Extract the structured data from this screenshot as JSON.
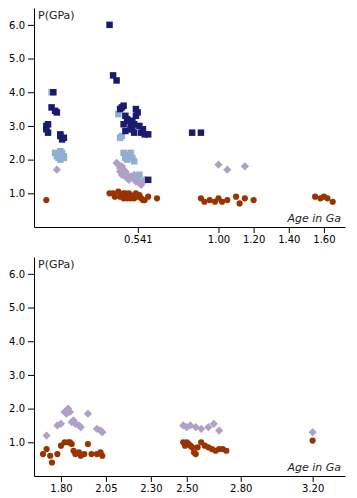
{
  "chart_data": [
    {
      "type": "scatter",
      "ylabel": "P(GPa)",
      "xlabel": "Age in Ga",
      "xlim": [
        -0.05,
        1.72
      ],
      "ylim": [
        0,
        6.5
      ],
      "xticks": [
        0.541,
        {
          "value": 1.0,
          "label": "1.00"
        },
        {
          "value": 1.2,
          "label": "1.20"
        },
        {
          "value": 1.4,
          "label": "1.40"
        },
        {
          "value": 1.6,
          "label": "1.60"
        }
      ],
      "yticks": [
        {
          "value": 1.0,
          "label": "1.0"
        },
        {
          "value": 2.0,
          "label": "2.0"
        },
        {
          "value": 3.0,
          "label": "3.0"
        },
        {
          "value": 4.0,
          "label": "4.0"
        },
        {
          "value": 5.0,
          "label": "5.0"
        },
        {
          "value": 6.0,
          "label": "6.0"
        }
      ],
      "series": [
        {
          "color": "#993300",
          "marker": "circle",
          "x": [
            0.02,
            0.38,
            0.4,
            0.41,
            0.43,
            0.44,
            0.45,
            0.46,
            0.46,
            0.47,
            0.47,
            0.48,
            0.48,
            0.49,
            0.49,
            0.5,
            0.5,
            0.51,
            0.52,
            0.53,
            0.54,
            0.55,
            0.56,
            0.57,
            0.58,
            0.6,
            0.65,
            0.9,
            0.92,
            0.95,
            0.98,
            1.0,
            1.02,
            1.05,
            1.1,
            1.12,
            1.15,
            1.2,
            1.55,
            1.58,
            1.6,
            1.62,
            1.65
          ],
          "values": [
            0.8,
            1.0,
            1.0,
            0.9,
            1.05,
            0.9,
            0.95,
            1.0,
            0.85,
            1.0,
            0.9,
            0.95,
            0.85,
            1.0,
            0.9,
            0.95,
            0.85,
            0.9,
            0.85,
            1.0,
            0.9,
            0.95,
            0.85,
            0.8,
            0.8,
            0.9,
            0.85,
            0.85,
            0.75,
            0.8,
            0.75,
            0.85,
            0.75,
            0.8,
            0.9,
            0.7,
            0.85,
            0.8,
            0.9,
            0.85,
            0.9,
            0.85,
            0.75
          ]
        },
        {
          "color": "#b0a0c8",
          "marker": "diamond",
          "x": [
            0.08,
            0.42,
            0.43,
            0.44,
            0.44,
            0.45,
            0.45,
            0.46,
            0.46,
            0.47,
            0.47,
            0.48,
            0.48,
            0.49,
            0.5,
            0.51,
            0.52,
            0.53,
            0.54,
            0.55,
            0.56,
            0.57,
            0.58,
            1.0,
            1.05,
            1.15
          ],
          "values": [
            1.7,
            1.9,
            1.85,
            1.75,
            1.65,
            1.8,
            1.55,
            1.7,
            1.6,
            1.65,
            1.5,
            1.55,
            1.45,
            1.4,
            1.5,
            1.45,
            1.55,
            1.35,
            1.4,
            1.3,
            1.25,
            1.35,
            1.4,
            1.85,
            1.7,
            1.8
          ]
        },
        {
          "color": "#8fb0d0",
          "marker": "square",
          "x": [
            0.05,
            0.07,
            0.08,
            0.09,
            0.09,
            0.1,
            0.1,
            0.11,
            0.12,
            0.12,
            0.43,
            0.44,
            0.45,
            0.46,
            0.47,
            0.47,
            0.48,
            0.49,
            0.5,
            0.51,
            0.52,
            0.54,
            0.55
          ],
          "values": [
            4.0,
            2.2,
            2.1,
            2.15,
            2.05,
            2.0,
            2.25,
            2.2,
            2.1,
            2.05,
            3.35,
            2.65,
            2.7,
            2.2,
            2.05,
            2.1,
            2.0,
            2.15,
            2.2,
            2.05,
            1.95,
            1.5,
            1.55
          ]
        },
        {
          "color": "#1a1a6e",
          "marker": "square",
          "x": [
            0.02,
            0.02,
            0.03,
            0.03,
            0.05,
            0.06,
            0.07,
            0.08,
            0.1,
            0.1,
            0.11,
            0.12,
            0.38,
            0.4,
            0.42,
            0.44,
            0.45,
            0.46,
            0.46,
            0.47,
            0.47,
            0.48,
            0.49,
            0.5,
            0.5,
            0.51,
            0.51,
            0.52,
            0.52,
            0.53,
            0.53,
            0.54,
            0.55,
            0.56,
            0.57,
            0.58,
            0.6,
            0.85,
            0.9,
            0.6
          ],
          "values": [
            3.0,
            2.9,
            2.8,
            3.05,
            3.55,
            4.0,
            3.45,
            3.4,
            2.7,
            2.75,
            2.6,
            2.65,
            6.0,
            4.5,
            4.35,
            3.5,
            3.55,
            3.6,
            3.05,
            2.85,
            3.3,
            3.2,
            3.15,
            2.9,
            3.0,
            2.9,
            3.15,
            2.8,
            3.05,
            3.3,
            3.5,
            3.4,
            3.0,
            2.8,
            2.9,
            2.75,
            2.75,
            2.8,
            2.8,
            1.4
          ]
        }
      ]
    },
    {
      "type": "scatter",
      "ylabel": "P(GPa)",
      "xlabel": "Age in Ga",
      "xlim": [
        1.65,
        3.38
      ],
      "ylim": [
        0,
        6.5
      ],
      "xticks": [
        {
          "value": 1.8,
          "label": "1.80"
        },
        2.05,
        {
          "value": 2.3,
          "label": "2.30"
        },
        {
          "value": 2.5,
          "label": "2.50"
        },
        {
          "value": 2.8,
          "label": "2.80"
        },
        {
          "value": 3.2,
          "label": "3.20"
        }
      ],
      "yticks": [
        {
          "value": 1.0,
          "label": "1.0"
        },
        {
          "value": 2.0,
          "label": "2.0"
        },
        {
          "value": 3.0,
          "label": "3.0"
        },
        {
          "value": 4.0,
          "label": "4.0"
        },
        {
          "value": 5.0,
          "label": "5.0"
        },
        {
          "value": 6.0,
          "label": "6.0"
        }
      ],
      "series": [
        {
          "color": "#993300",
          "marker": "circle",
          "x": [
            1.7,
            1.72,
            1.74,
            1.75,
            1.78,
            1.8,
            1.82,
            1.84,
            1.85,
            1.86,
            1.87,
            1.88,
            1.9,
            1.91,
            1.93,
            1.95,
            1.97,
            2.0,
            2.02,
            2.03,
            2.48,
            2.49,
            2.5,
            2.51,
            2.52,
            2.53,
            2.54,
            2.55,
            2.56,
            2.58,
            2.6,
            2.62,
            2.64,
            2.66,
            2.68,
            2.7,
            2.72,
            3.2
          ],
          "values": [
            0.65,
            0.8,
            0.6,
            0.4,
            0.65,
            0.9,
            1.0,
            1.0,
            1.0,
            0.95,
            0.75,
            0.65,
            0.7,
            0.6,
            0.65,
            0.95,
            0.65,
            0.65,
            0.7,
            0.6,
            1.0,
            0.9,
            1.0,
            0.95,
            0.9,
            0.85,
            0.7,
            0.65,
            0.85,
            1.0,
            0.9,
            0.85,
            0.8,
            0.75,
            0.8,
            0.8,
            0.75,
            1.05
          ]
        },
        {
          "color": "#b0a0c8",
          "marker": "diamond",
          "x": [
            1.72,
            1.78,
            1.8,
            1.82,
            1.83,
            1.84,
            1.85,
            1.86,
            1.87,
            1.88,
            1.9,
            1.91,
            1.95,
            2.0,
            2.02,
            2.03,
            2.48,
            2.5,
            2.52,
            2.55,
            2.58,
            2.62,
            2.65,
            2.68,
            3.2
          ],
          "values": [
            1.2,
            1.5,
            1.55,
            1.9,
            1.85,
            2.0,
            1.9,
            1.6,
            1.65,
            1.55,
            1.5,
            1.45,
            1.85,
            1.4,
            1.35,
            1.3,
            1.5,
            1.45,
            1.5,
            1.45,
            1.4,
            1.45,
            1.55,
            1.35,
            1.3
          ]
        }
      ]
    }
  ]
}
